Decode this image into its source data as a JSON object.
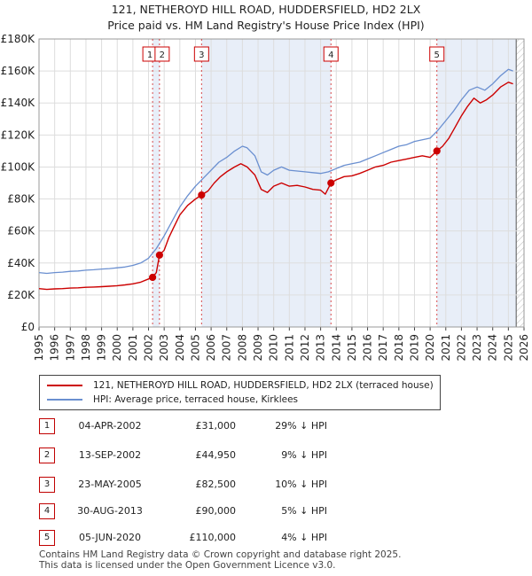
{
  "chart_data": {
    "type": "line",
    "title": "121, NETHEROYD HILL ROAD, HUDDERSFIELD, HD2 2LX",
    "subtitle": "Price paid vs. HM Land Registry's House Price Index (HPI)",
    "xlabel": "",
    "ylabel": "",
    "xlim": [
      1995,
      2026
    ],
    "ylim": [
      0,
      180000
    ],
    "x_ticks": [
      "1995",
      "1996",
      "1997",
      "1998",
      "1999",
      "2000",
      "2001",
      "2002",
      "2003",
      "2004",
      "2005",
      "2006",
      "2007",
      "2008",
      "2009",
      "2010",
      "2011",
      "2012",
      "2013",
      "2014",
      "2015",
      "2016",
      "2017",
      "2018",
      "2019",
      "2020",
      "2021",
      "2022",
      "2023",
      "2024",
      "2025",
      "2026"
    ],
    "y_ticks": [
      {
        "value": 0,
        "label": "£0"
      },
      {
        "value": 20000,
        "label": "£20K"
      },
      {
        "value": 40000,
        "label": "£40K"
      },
      {
        "value": 60000,
        "label": "£60K"
      },
      {
        "value": 80000,
        "label": "£80K"
      },
      {
        "value": 100000,
        "label": "£100K"
      },
      {
        "value": 120000,
        "label": "£120K"
      },
      {
        "value": 140000,
        "label": "£140K"
      },
      {
        "value": 160000,
        "label": "£160K"
      },
      {
        "value": 180000,
        "label": "£180K"
      }
    ],
    "grid": true,
    "series": [
      {
        "name": "121, NETHEROYD HILL ROAD, HUDDERSFIELD, HD2 2LX (terraced house)",
        "color": "#cc0000",
        "x": [
          1995.0,
          1995.5,
          1996.0,
          1996.5,
          1997.0,
          1997.5,
          1998.0,
          1998.5,
          1999.0,
          1999.5,
          2000.0,
          2000.5,
          2001.0,
          2001.5,
          2002.0,
          2002.26,
          2002.5,
          2002.7,
          2003.0,
          2003.3,
          2003.6,
          2004.0,
          2004.5,
          2005.0,
          2005.39,
          2005.8,
          2006.2,
          2006.6,
          2007.0,
          2007.5,
          2007.9,
          2008.3,
          2008.8,
          2009.2,
          2009.6,
          2010.0,
          2010.5,
          2011.0,
          2011.5,
          2012.0,
          2012.5,
          2013.0,
          2013.3,
          2013.66,
          2014.0,
          2014.5,
          2015.0,
          2015.5,
          2016.0,
          2016.5,
          2017.0,
          2017.5,
          2018.0,
          2018.5,
          2019.0,
          2019.5,
          2020.0,
          2020.43,
          2020.8,
          2021.2,
          2021.6,
          2022.0,
          2022.4,
          2022.8,
          2023.2,
          2023.6,
          2024.0,
          2024.5,
          2025.0,
          2025.3
        ],
        "values": [
          24000,
          23500,
          23800,
          24000,
          24300,
          24500,
          24800,
          25000,
          25200,
          25500,
          25800,
          26300,
          27000,
          28000,
          30000,
          31000,
          34000,
          44950,
          48000,
          56000,
          62000,
          70000,
          76000,
          80000,
          82500,
          85000,
          90000,
          94000,
          97000,
          100000,
          102000,
          100000,
          95000,
          86000,
          84000,
          88000,
          90000,
          88000,
          88500,
          87500,
          86000,
          85500,
          83000,
          90000,
          92000,
          94000,
          94500,
          96000,
          98000,
          100000,
          101000,
          103000,
          104000,
          105000,
          106000,
          107000,
          106000,
          110000,
          113000,
          118000,
          125000,
          132000,
          138000,
          143000,
          140000,
          142000,
          145000,
          150000,
          153000,
          152000
        ]
      },
      {
        "name": "HPI: Average price, terraced house, Kirklees",
        "color": "#6a8fd0",
        "x": [
          1995.0,
          1995.5,
          1996.0,
          1996.5,
          1997.0,
          1997.5,
          1998.0,
          1998.5,
          1999.0,
          1999.5,
          2000.0,
          2000.5,
          2001.0,
          2001.5,
          2002.0,
          2002.5,
          2003.0,
          2003.5,
          2004.0,
          2004.5,
          2005.0,
          2005.5,
          2006.0,
          2006.5,
          2007.0,
          2007.5,
          2008.0,
          2008.3,
          2008.8,
          2009.2,
          2009.6,
          2010.0,
          2010.5,
          2011.0,
          2011.5,
          2012.0,
          2012.5,
          2013.0,
          2013.5,
          2014.0,
          2014.5,
          2015.0,
          2015.5,
          2016.0,
          2016.5,
          2017.0,
          2017.5,
          2018.0,
          2018.5,
          2019.0,
          2019.5,
          2020.0,
          2020.5,
          2021.0,
          2021.5,
          2022.0,
          2022.5,
          2023.0,
          2023.5,
          2024.0,
          2024.5,
          2025.0,
          2025.3
        ],
        "values": [
          34000,
          33500,
          34000,
          34300,
          34800,
          35000,
          35500,
          35800,
          36200,
          36500,
          37000,
          37500,
          38500,
          40000,
          43000,
          49000,
          57000,
          66000,
          75000,
          82000,
          88000,
          93000,
          98000,
          103000,
          106000,
          110000,
          113000,
          112000,
          107000,
          97000,
          95000,
          98000,
          100000,
          98000,
          97500,
          97000,
          96500,
          96000,
          97000,
          99000,
          101000,
          102000,
          103000,
          105000,
          107000,
          109000,
          111000,
          113000,
          114000,
          116000,
          117000,
          118000,
          123000,
          129000,
          135000,
          142000,
          148000,
          150000,
          148000,
          152000,
          157000,
          161000,
          160000
        ]
      }
    ],
    "sales": [
      {
        "num": "1",
        "x": 2002.26,
        "value": 31000
      },
      {
        "num": "2",
        "x": 2002.7,
        "value": 44950
      },
      {
        "num": "3",
        "x": 2005.39,
        "value": 82500
      },
      {
        "num": "4",
        "x": 2013.66,
        "value": 90000
      },
      {
        "num": "5",
        "x": 2020.43,
        "value": 110000
      }
    ],
    "data_end_x": 2025.5
  },
  "legend": {
    "red_label": "121, NETHEROYD HILL ROAD, HUDDERSFIELD, HD2 2LX (terraced house)",
    "blue_label": "HPI: Average price, terraced house, Kirklees"
  },
  "table": [
    {
      "num": "1",
      "date": "04-APR-2002",
      "price": "£31,000",
      "hpi": "29% ↓ HPI"
    },
    {
      "num": "2",
      "date": "13-SEP-2002",
      "price": "£44,950",
      "hpi": "9% ↓ HPI"
    },
    {
      "num": "3",
      "date": "23-MAY-2005",
      "price": "£82,500",
      "hpi": "10% ↓ HPI"
    },
    {
      "num": "4",
      "date": "30-AUG-2013",
      "price": "£90,000",
      "hpi": "5% ↓ HPI"
    },
    {
      "num": "5",
      "date": "05-JUN-2020",
      "price": "£110,000",
      "hpi": "4% ↓ HPI"
    }
  ],
  "footer": {
    "line1": "Contains HM Land Registry data © Crown copyright and database right 2025.",
    "line2": "This data is licensed under the Open Government Licence v3.0."
  }
}
